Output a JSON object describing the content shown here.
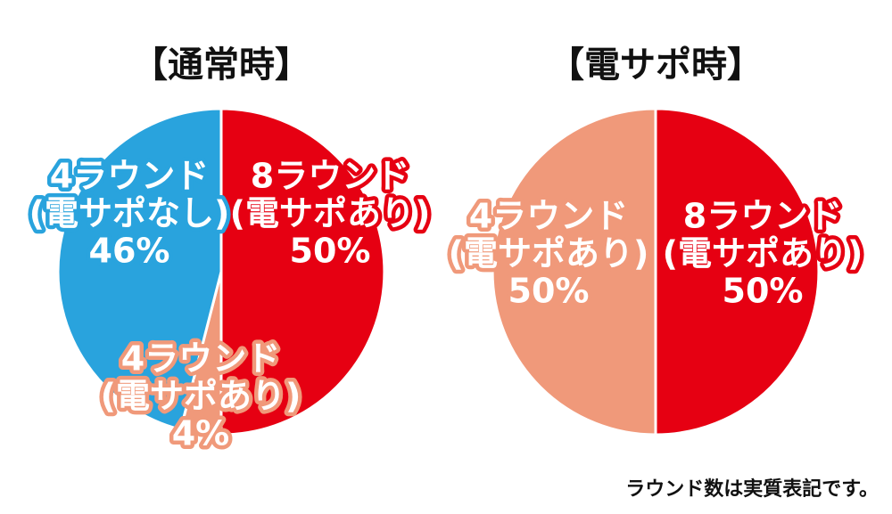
{
  "chart_data": [
    {
      "type": "pie",
      "title": "【通常時】",
      "categories": [
        [
          "8ラウンド",
          "(電サポあり)"
        ],
        [
          "4ラウンド",
          "(電サポあり)"
        ],
        [
          "4ラウンド",
          "(電サポなし)"
        ]
      ],
      "values": [
        50,
        4,
        46
      ],
      "value_labels": [
        "50%",
        "4%",
        "46%"
      ],
      "colors": [
        "#e60012",
        "#f0997a",
        "#29a3dd"
      ]
    },
    {
      "type": "pie",
      "title": "【電サポ時】",
      "categories": [
        [
          "8ラウンド",
          "(電サポあり)"
        ],
        [
          "4ラウンド",
          "(電サポあり)"
        ]
      ],
      "values": [
        50,
        50
      ],
      "value_labels": [
        "50%",
        "50%"
      ],
      "colors": [
        "#e60012",
        "#f0997a"
      ]
    }
  ],
  "note": "ラウンド数は実質表記です。"
}
